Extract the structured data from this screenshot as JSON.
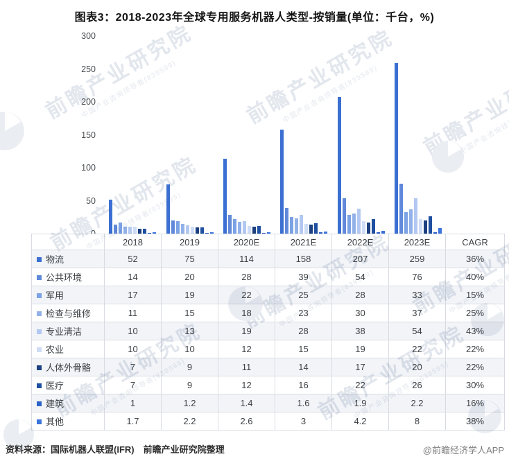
{
  "title": "图表3：2018-2023年全球专用服务机器人类型-按销量(单位：千台，%)",
  "chart_data": {
    "type": "bar",
    "title": "2018-2023年全球专用服务机器人类型-按销量",
    "unit": "千台，%",
    "categories": [
      "2018",
      "2019",
      "2020E",
      "2021E",
      "2022E",
      "2023E"
    ],
    "series": [
      {
        "name": "物流",
        "color": "#3B70D2",
        "values": [
          52,
          75,
          114,
          158,
          207,
          259
        ],
        "cagr": "36%"
      },
      {
        "name": "公共环境",
        "color": "#6089D9",
        "values": [
          14,
          20,
          28,
          39,
          54,
          76
        ],
        "cagr": "40%"
      },
      {
        "name": "军用",
        "color": "#7BA2E4",
        "values": [
          17,
          19,
          22,
          25,
          28,
          33
        ],
        "cagr": "15%"
      },
      {
        "name": "检查与维修",
        "color": "#93B1E9",
        "values": [
          11,
          15,
          18,
          23,
          30,
          37
        ],
        "cagr": "25%"
      },
      {
        "name": "专业清洁",
        "color": "#B3C8F1",
        "values": [
          10,
          13,
          19,
          28,
          38,
          54
        ],
        "cagr": "43%"
      },
      {
        "name": "农业",
        "color": "#CFDCF6",
        "values": [
          10,
          10,
          12,
          15,
          19,
          22
        ],
        "cagr": "22%"
      },
      {
        "name": "人体外骨骼",
        "color": "#1C4080",
        "values": [
          7,
          9,
          11,
          14,
          17,
          20
        ],
        "cagr": "22%"
      },
      {
        "name": "医疗",
        "color": "#1F4FA0",
        "values": [
          7,
          9,
          12,
          16,
          22,
          26
        ],
        "cagr": "30%"
      },
      {
        "name": "建筑",
        "color": "#2B62C8",
        "values": [
          1,
          1.2,
          1.4,
          1.6,
          1.9,
          2.2
        ],
        "cagr": "16%"
      },
      {
        "name": "其他",
        "color": "#3B74DC",
        "values": [
          1.7,
          2.2,
          2.6,
          3,
          4.2,
          8
        ],
        "cagr": "38%"
      }
    ],
    "ylim": [
      0,
      300
    ],
    "yticks": [
      0,
      50,
      100,
      150,
      200,
      250,
      300
    ],
    "grid": false,
    "legend_position": "table-left-column"
  },
  "table": {
    "header": [
      "",
      "2018",
      "2019",
      "2020E",
      "2021E",
      "2022E",
      "2023E",
      "CAGR"
    ]
  },
  "watermark": {
    "text": "前瞻产业研究院",
    "subtext": "中国产业咨询领导者(839599)"
  },
  "footer": {
    "source": "资料来源：国际机器人联盟(IFR)　前瞻产业研究院整理",
    "credit": "@前瞻经济学人APP"
  }
}
